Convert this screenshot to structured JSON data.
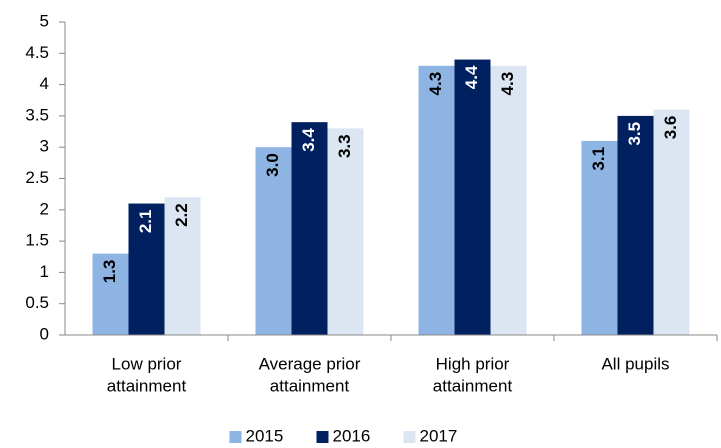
{
  "chart_data": {
    "type": "bar",
    "categories": [
      [
        "Low prior",
        "attainment"
      ],
      [
        "Average prior",
        "attainment"
      ],
      [
        "High prior",
        "attainment"
      ],
      [
        "All pupils"
      ]
    ],
    "series": [
      {
        "name": "2015",
        "color": "#8eb4e3",
        "values": [
          1.3,
          3.0,
          4.3,
          3.1
        ],
        "value_labels": [
          "1.3",
          "3.0",
          "4.3",
          "3.1"
        ],
        "label_color": "#000000"
      },
      {
        "name": "2016",
        "color": "#002060",
        "values": [
          2.1,
          3.4,
          4.4,
          3.5
        ],
        "label_color": "#ffffff"
      },
      {
        "name": "2017",
        "color": "#dce6f2",
        "values": [
          2.2,
          3.3,
          4.3,
          3.6
        ],
        "label_color": "#000000"
      }
    ],
    "ylim": [
      0,
      5
    ],
    "yticks": [
      0,
      0.5,
      1,
      1.5,
      2,
      2.5,
      3,
      3.5,
      4,
      4.5,
      5
    ],
    "legend": "bottom"
  }
}
